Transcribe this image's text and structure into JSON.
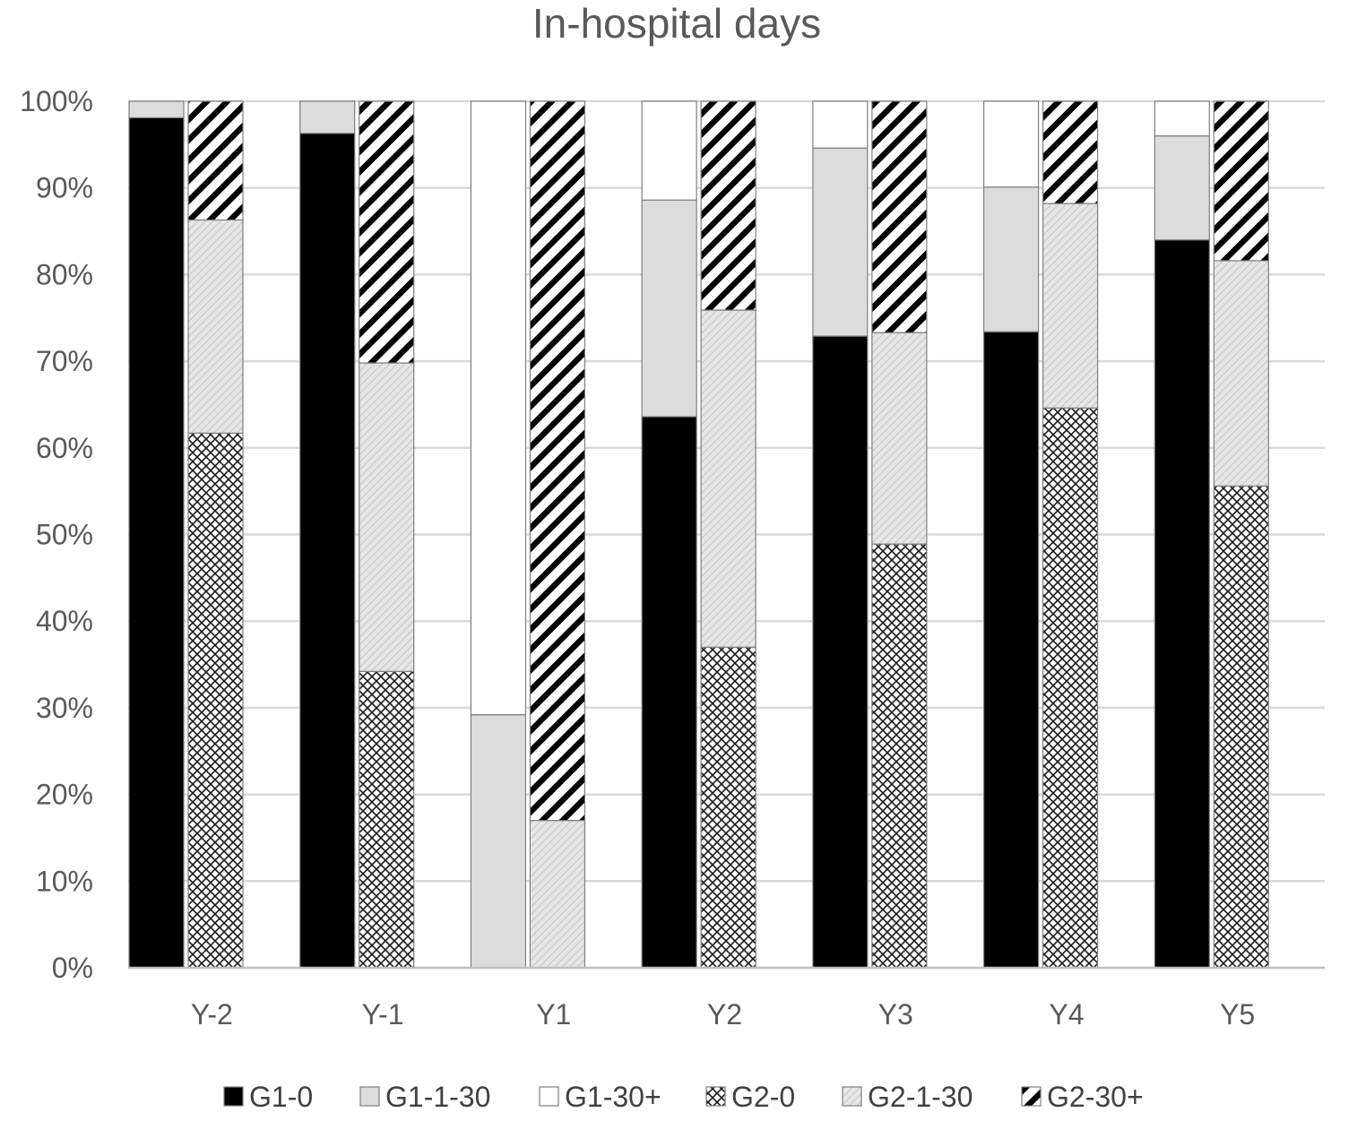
{
  "chart_data": {
    "type": "bar",
    "stacked": true,
    "normalized": true,
    "title": "In-hospital days",
    "xlabel": "",
    "ylabel": "",
    "ylim": [
      0,
      100
    ],
    "yticks": [
      "0%",
      "10%",
      "20%",
      "30%",
      "40%",
      "50%",
      "60%",
      "70%",
      "80%",
      "90%",
      "100%"
    ],
    "grid": true,
    "legend_position": "bottom",
    "categories": [
      "Y-2",
      "Y-1",
      "Y1",
      "Y2",
      "Y3",
      "Y4",
      "Y5"
    ],
    "groups": [
      {
        "group": "G1",
        "series": [
          {
            "name": "G1-0",
            "pattern": "solid-black",
            "values": [
              98.1,
              96.3,
              0,
              63.6,
              72.9,
              73.4,
              84.0
            ]
          },
          {
            "name": "G1-1-30",
            "pattern": "solid-lightgray",
            "values": [
              1.9,
              3.7,
              29.2,
              25.0,
              21.7,
              16.7,
              12.0
            ]
          },
          {
            "name": "G1-30+",
            "pattern": "solid-white",
            "values": [
              0,
              0,
              70.8,
              11.4,
              5.4,
              9.9,
              4.0
            ]
          }
        ]
      },
      {
        "group": "G2",
        "series": [
          {
            "name": "G2-0",
            "pattern": "crosshatch",
            "values": [
              61.7,
              34.2,
              0,
              37.0,
              48.9,
              64.6,
              55.6
            ]
          },
          {
            "name": "G2-1-30",
            "pattern": "light-diagonal",
            "values": [
              24.6,
              35.6,
              17.0,
              38.9,
              24.4,
              23.6,
              26.0
            ]
          },
          {
            "name": "G2-30+",
            "pattern": "bold-diagonal",
            "values": [
              13.7,
              30.2,
              83.0,
              24.1,
              26.7,
              11.8,
              18.4
            ]
          }
        ]
      }
    ],
    "colors": {
      "text": "#595959",
      "gridline": "#d9d9d9",
      "axis": "#bfbfbf",
      "black": "#000000",
      "lightgray": "#dcdcdc",
      "white": "#ffffff",
      "outline": "#7f7f7f"
    }
  }
}
